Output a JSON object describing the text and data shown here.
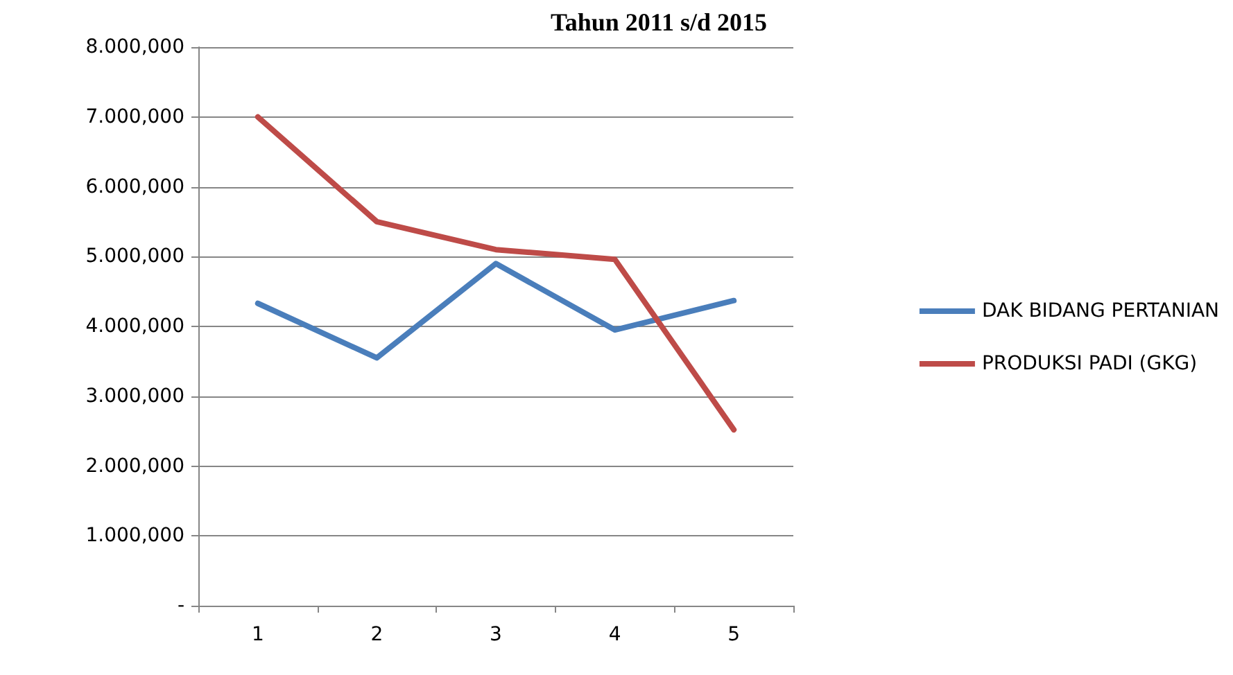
{
  "chart_data": {
    "type": "line",
    "title": "Tahun 2011 s/d 2015",
    "categories": [
      "1",
      "2",
      "3",
      "4",
      "5"
    ],
    "series": [
      {
        "name": "DAK BIDANG PERTANIAN",
        "color": "#4a7ebb",
        "values": [
          4330,
          3550,
          4900,
          3950,
          4370
        ]
      },
      {
        "name": "PRODUKSI PADI (GKG)",
        "color": "#be4b48",
        "values": [
          7000,
          5500,
          5100,
          4960,
          2520
        ]
      }
    ],
    "ylim": [
      0,
      8000
    ],
    "yticks": [
      {
        "value": 0,
        "label": "-"
      },
      {
        "value": 1000,
        "label": "1.000,000"
      },
      {
        "value": 2000,
        "label": "2.000,000"
      },
      {
        "value": 3000,
        "label": "3.000,000"
      },
      {
        "value": 4000,
        "label": "4.000,000"
      },
      {
        "value": 5000,
        "label": "5.000,000"
      },
      {
        "value": 6000,
        "label": "6.000,000"
      },
      {
        "value": 7000,
        "label": "7.000,000"
      },
      {
        "value": 8000,
        "label": "8.000,000"
      }
    ],
    "grid": "y",
    "legend": "right",
    "marker": "none",
    "line_style": "solid"
  }
}
